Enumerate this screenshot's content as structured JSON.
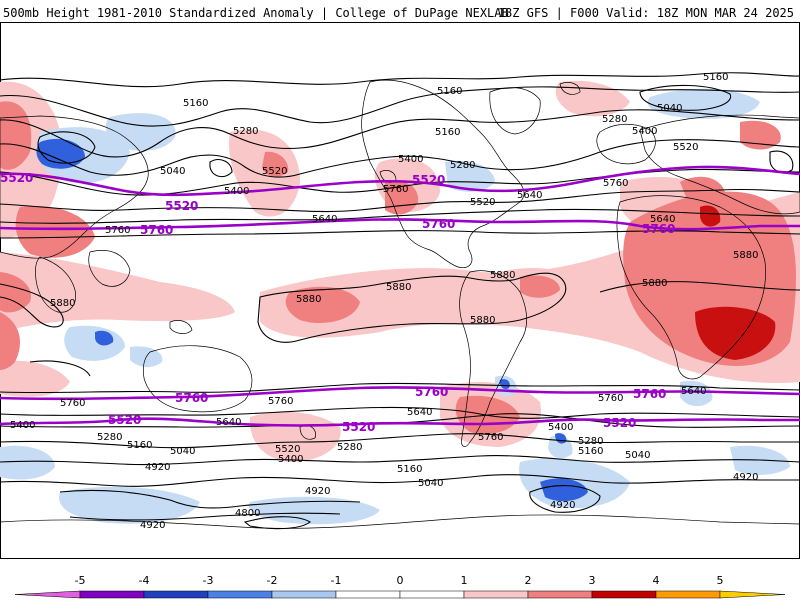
{
  "header": {
    "left": "500mb Height 1981-2010 Standardized Anomaly | College of DuPage NEXLAB",
    "right": "18Z GFS | F000 Valid: 18Z MON MAR 24 2025"
  },
  "colors": {
    "anom_pos_1": "#f9c7c7",
    "anom_pos_2": "#f07f7f",
    "anom_pos_3": "#d61a1a",
    "anom_pos_4": "#a80000",
    "anom_neg_1": "#c6dcf5",
    "anom_neg_2": "#5a8ee6",
    "anom_neg_3": "#1e40c8",
    "highlight_contour": "#9a00c8",
    "contour": "#000000",
    "coast": "#000000"
  },
  "contour_labels": {
    "black": [
      "5160",
      "5280",
      "5040",
      "5400",
      "5520",
      "5640",
      "5760",
      "5880",
      "4920",
      "4800"
    ],
    "purple": [
      "5520",
      "5760"
    ]
  },
  "labels": [
    {
      "t": "5160"
    },
    {
      "t": "5280"
    },
    {
      "t": "5040"
    },
    {
      "t": "5400"
    },
    {
      "t": "5520"
    },
    {
      "t": "5640"
    },
    {
      "t": "5760"
    },
    {
      "t": "5880"
    },
    {
      "t": "5160"
    },
    {
      "t": "5280"
    },
    {
      "t": "5160"
    },
    {
      "t": "5400"
    },
    {
      "t": "5520"
    },
    {
      "t": "5640"
    },
    {
      "t": "5760"
    },
    {
      "t": "5880"
    },
    {
      "t": "5880"
    },
    {
      "t": "5880"
    },
    {
      "t": "5880"
    },
    {
      "t": "5160"
    },
    {
      "t": "5040"
    },
    {
      "t": "5280"
    },
    {
      "t": "5400"
    },
    {
      "t": "5520"
    },
    {
      "t": "5760"
    },
    {
      "t": "5640"
    },
    {
      "t": "5880"
    },
    {
      "t": "5880"
    },
    {
      "t": "5760"
    },
    {
      "t": "5400"
    },
    {
      "t": "5280"
    },
    {
      "t": "5160"
    },
    {
      "t": "5040"
    },
    {
      "t": "4920"
    },
    {
      "t": "4920"
    },
    {
      "t": "4800"
    },
    {
      "t": "4920"
    },
    {
      "t": "5640"
    },
    {
      "t": "5760"
    },
    {
      "t": "5520"
    },
    {
      "t": "5400"
    },
    {
      "t": "5280"
    },
    {
      "t": "5160"
    },
    {
      "t": "5040"
    },
    {
      "t": "5400"
    },
    {
      "t": "5280"
    },
    {
      "t": "5160"
    },
    {
      "t": "5040"
    },
    {
      "t": "4920"
    },
    {
      "t": "4920"
    },
    {
      "t": "5640"
    },
    {
      "t": "5760"
    },
    {
      "t": "5640"
    },
    {
      "t": "5760"
    }
  ],
  "purple_labels": [
    {
      "t": "5520"
    },
    {
      "t": "5520"
    },
    {
      "t": "5520"
    },
    {
      "t": "5760"
    },
    {
      "t": "5760"
    },
    {
      "t": "5760"
    },
    {
      "t": "5760"
    },
    {
      "t": "5760"
    },
    {
      "t": "5760"
    },
    {
      "t": "5520"
    },
    {
      "t": "5520"
    },
    {
      "t": "5520"
    }
  ],
  "colorbar": {
    "ticks": [
      "-5",
      "-4",
      "-3",
      "-2",
      "-1",
      "0",
      "1",
      "2",
      "3",
      "4",
      "5"
    ],
    "bins": [
      "#e060e0",
      "#8000c0",
      "#2040c0",
      "#4a80e8",
      "#a8c8f0",
      "#ffffff",
      "#ffffff",
      "#f9c7c7",
      "#f07f7f",
      "#c00000",
      "#ff9a00",
      "#ffcc00"
    ]
  }
}
